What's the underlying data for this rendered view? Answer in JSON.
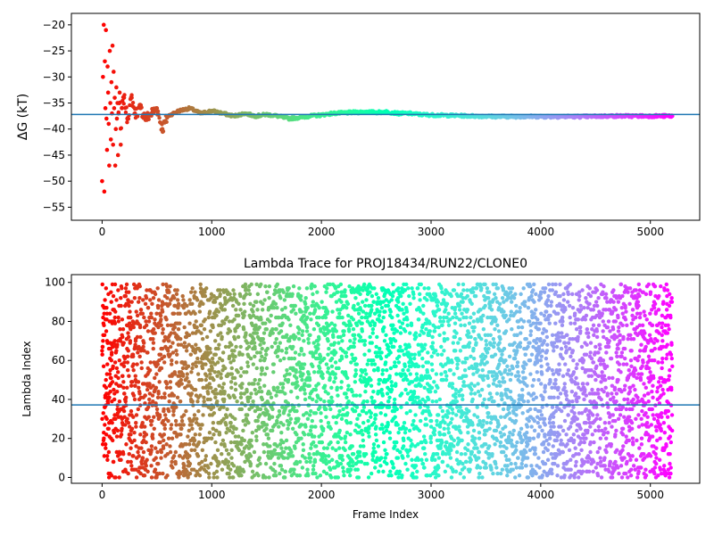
{
  "chart_data": [
    {
      "type": "scatter",
      "title": "",
      "xlabel": "",
      "ylabel": "ΔG (kT)",
      "xlim": [
        -280,
        5450
      ],
      "ylim": [
        -57.5,
        -17.8
      ],
      "xticks": [
        0,
        1000,
        2000,
        3000,
        4000,
        5000
      ],
      "yticks": [
        -55,
        -50,
        -45,
        -40,
        -35,
        -30,
        -25,
        -20
      ],
      "hline": -37.2,
      "colormap": "rainbow (red at frame 0 to violet at frame ~5200)",
      "series": [
        {
          "x": [
            0,
            8,
            15,
            20,
            25,
            30,
            35,
            40,
            45,
            50,
            55,
            60,
            65,
            70,
            75,
            80,
            85,
            90,
            95,
            100,
            105,
            110,
            115,
            120,
            125,
            130,
            135,
            140,
            145,
            150,
            160,
            170,
            180,
            200,
            230,
            270,
            300,
            350,
            400,
            450,
            500,
            550,
            600,
            700,
            800,
            900,
            1000,
            1100,
            1200,
            1300,
            1400,
            1500,
            1600,
            1700,
            1800,
            1900,
            2000,
            2100,
            2200,
            2300,
            2400,
            2500,
            2600,
            2700,
            2800,
            2900,
            3000,
            3200,
            3400,
            3600,
            3800,
            4000,
            4200,
            4400,
            4600,
            4800,
            5000,
            5200
          ],
          "y": [
            -50,
            -30,
            -20,
            -52,
            -27,
            -36,
            -21,
            -38,
            -44,
            -28,
            -33,
            -39,
            -47,
            -25,
            -35,
            -42,
            -31,
            -37,
            -24,
            -43,
            -29,
            -36,
            -34,
            -47,
            -40,
            -32,
            -38,
            -35,
            -45,
            -37,
            -33,
            -43,
            -36,
            -34,
            -38,
            -34,
            -37,
            -36,
            -38,
            -37,
            -36,
            -40,
            -37.5,
            -36.5,
            -36,
            -37,
            -36.5,
            -37,
            -37.5,
            -37,
            -37.5,
            -37.2,
            -37.5,
            -38,
            -37.8,
            -37.5,
            -37.3,
            -37,
            -36.9,
            -36.8,
            -36.7,
            -36.8,
            -36.7,
            -37,
            -37,
            -37.2,
            -37.3,
            -37.4,
            -37.5,
            -37.6,
            -37.6,
            -37.6,
            -37.6,
            -37.6,
            -37.5,
            -37.5,
            -37.5,
            -37.5
          ]
        }
      ]
    },
    {
      "type": "scatter",
      "title": "Lambda Trace for PROJ18434/RUN22/CLONE0",
      "xlabel": "Frame Index",
      "ylabel": "Lambda Index",
      "xlim": [
        -280,
        5450
      ],
      "ylim": [
        -3,
        104
      ],
      "xticks": [
        0,
        1000,
        2000,
        3000,
        4000,
        5000
      ],
      "yticks": [
        0,
        20,
        40,
        60,
        80,
        100
      ],
      "hline": 37.2,
      "colormap": "rainbow (red at frame 0 to violet at frame ~5200)",
      "frame_max": 5200,
      "lambda_range": [
        0,
        99
      ]
    }
  ]
}
